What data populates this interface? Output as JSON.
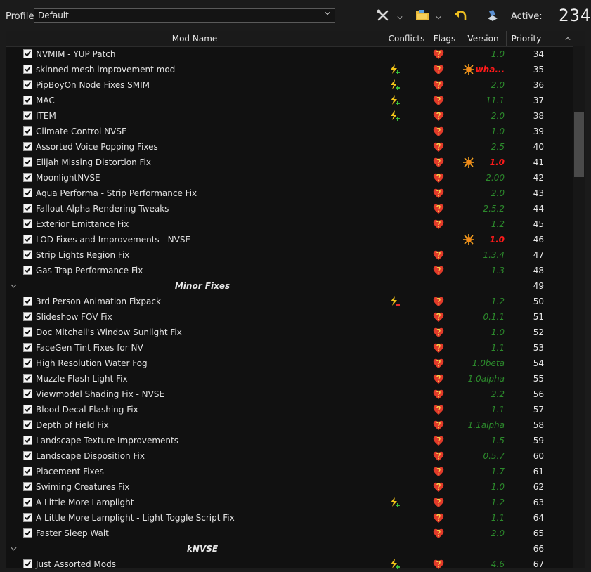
{
  "toolbar": {
    "profile_label": "Profile",
    "profile_value": "Default",
    "active_label": "Active:",
    "active_count": "234",
    "icons": [
      "tools-icon",
      "folder-icon",
      "undo-icon",
      "archive-icon"
    ]
  },
  "columns": [
    "Mod Name",
    "Conflicts",
    "Flags",
    "Version",
    "Priority"
  ],
  "rows": [
    {
      "type": "mod",
      "name": "NVMIM - YUP Patch",
      "conflict": "",
      "flag": true,
      "warn": false,
      "version": "1.0",
      "bad": false,
      "priority": "34"
    },
    {
      "type": "mod",
      "name": "skinned mesh improvement mod",
      "conflict": "overwrite",
      "flag": true,
      "warn": true,
      "version": "wha...",
      "bad": true,
      "priority": "35"
    },
    {
      "type": "mod",
      "name": "PipBoyOn Node Fixes SMIM",
      "conflict": "overwrite",
      "flag": true,
      "warn": false,
      "version": "2.0",
      "bad": false,
      "priority": "36"
    },
    {
      "type": "mod",
      "name": "MAC",
      "conflict": "overwrite",
      "flag": true,
      "warn": false,
      "version": "11.1",
      "bad": false,
      "priority": "37"
    },
    {
      "type": "mod",
      "name": "ITEM",
      "conflict": "overwrite",
      "flag": true,
      "warn": false,
      "version": "2.0",
      "bad": false,
      "priority": "38"
    },
    {
      "type": "mod",
      "name": "Climate Control NVSE",
      "conflict": "",
      "flag": true,
      "warn": false,
      "version": "1.0",
      "bad": false,
      "priority": "39"
    },
    {
      "type": "mod",
      "name": "Assorted Voice Popping Fixes",
      "conflict": "",
      "flag": true,
      "warn": false,
      "version": "2.5",
      "bad": false,
      "priority": "40"
    },
    {
      "type": "mod",
      "name": "Elijah Missing Distortion Fix",
      "conflict": "",
      "flag": true,
      "warn": true,
      "version": "1.0",
      "bad": true,
      "priority": "41"
    },
    {
      "type": "mod",
      "name": "MoonlightNVSE",
      "conflict": "",
      "flag": true,
      "warn": false,
      "version": "2.00",
      "bad": false,
      "priority": "42"
    },
    {
      "type": "mod",
      "name": "Aqua Performa - Strip Performance Fix",
      "conflict": "",
      "flag": true,
      "warn": false,
      "version": "2.0",
      "bad": false,
      "priority": "43"
    },
    {
      "type": "mod",
      "name": "Fallout Alpha Rendering Tweaks",
      "conflict": "",
      "flag": true,
      "warn": false,
      "version": "2.5.2",
      "bad": false,
      "priority": "44"
    },
    {
      "type": "mod",
      "name": "Exterior Emittance Fix",
      "conflict": "",
      "flag": true,
      "warn": false,
      "version": "1.2",
      "bad": false,
      "priority": "45"
    },
    {
      "type": "mod",
      "name": "LOD Fixes and Improvements - NVSE",
      "conflict": "",
      "flag": false,
      "warn": true,
      "version": "1.0",
      "bad": true,
      "priority": "46"
    },
    {
      "type": "mod",
      "name": "Strip Lights Region Fix",
      "conflict": "",
      "flag": true,
      "warn": false,
      "version": "1.3.4",
      "bad": false,
      "priority": "47"
    },
    {
      "type": "mod",
      "name": "Gas Trap Performance Fix",
      "conflict": "",
      "flag": true,
      "warn": false,
      "version": "1.3",
      "bad": false,
      "priority": "48"
    },
    {
      "type": "sep",
      "name": "Minor Fixes",
      "priority": "49"
    },
    {
      "type": "mod",
      "name": "3rd Person Animation Fixpack",
      "conflict": "overwritten",
      "flag": true,
      "warn": false,
      "version": "1.2",
      "bad": false,
      "priority": "50"
    },
    {
      "type": "mod",
      "name": "Slideshow FOV Fix",
      "conflict": "",
      "flag": true,
      "warn": false,
      "version": "0.1.1",
      "bad": false,
      "priority": "51"
    },
    {
      "type": "mod",
      "name": "Doc Mitchell's Window Sunlight Fix",
      "conflict": "",
      "flag": true,
      "warn": false,
      "version": "1.0",
      "bad": false,
      "priority": "52"
    },
    {
      "type": "mod",
      "name": "FaceGen Tint Fixes for NV",
      "conflict": "",
      "flag": true,
      "warn": false,
      "version": "1.1",
      "bad": false,
      "priority": "53"
    },
    {
      "type": "mod",
      "name": "High Resolution Water Fog",
      "conflict": "",
      "flag": true,
      "warn": false,
      "version": "1.0beta",
      "bad": false,
      "priority": "54"
    },
    {
      "type": "mod",
      "name": "Muzzle Flash Light Fix",
      "conflict": "",
      "flag": true,
      "warn": false,
      "version": "1.0alpha",
      "bad": false,
      "priority": "55"
    },
    {
      "type": "mod",
      "name": "Viewmodel Shading Fix - NVSE",
      "conflict": "",
      "flag": true,
      "warn": false,
      "version": "2.2",
      "bad": false,
      "priority": "56"
    },
    {
      "type": "mod",
      "name": "Blood Decal Flashing Fix",
      "conflict": "",
      "flag": true,
      "warn": false,
      "version": "1.1",
      "bad": false,
      "priority": "57"
    },
    {
      "type": "mod",
      "name": "Depth of Field Fix",
      "conflict": "",
      "flag": true,
      "warn": false,
      "version": "1.1alpha",
      "bad": false,
      "priority": "58"
    },
    {
      "type": "mod",
      "name": "Landscape Texture Improvements",
      "conflict": "",
      "flag": true,
      "warn": false,
      "version": "1.5",
      "bad": false,
      "priority": "59"
    },
    {
      "type": "mod",
      "name": "Landscape Disposition Fix",
      "conflict": "",
      "flag": true,
      "warn": false,
      "version": "0.5.7",
      "bad": false,
      "priority": "60"
    },
    {
      "type": "mod",
      "name": "Placement Fixes",
      "conflict": "",
      "flag": true,
      "warn": false,
      "version": "1.7",
      "bad": false,
      "priority": "61"
    },
    {
      "type": "mod",
      "name": "Swiming Creatures Fix",
      "conflict": "",
      "flag": true,
      "warn": false,
      "version": "1.0",
      "bad": false,
      "priority": "62"
    },
    {
      "type": "mod",
      "name": "A Little More Lamplight",
      "conflict": "overwrite",
      "flag": true,
      "warn": false,
      "version": "1.2",
      "bad": false,
      "priority": "63"
    },
    {
      "type": "mod",
      "name": "A Little More Lamplight - Light Toggle Script Fix",
      "conflict": "",
      "flag": true,
      "warn": false,
      "version": "1.1",
      "bad": false,
      "priority": "64"
    },
    {
      "type": "mod",
      "name": "Faster Sleep Wait",
      "conflict": "",
      "flag": true,
      "warn": false,
      "version": "2.0",
      "bad": false,
      "priority": "65"
    },
    {
      "type": "sep",
      "name": "kNVSE",
      "priority": "66"
    },
    {
      "type": "mod",
      "name": "Just Assorted Mods",
      "conflict": "overwrite",
      "flag": true,
      "warn": false,
      "version": "4.6",
      "bad": false,
      "priority": "67"
    }
  ],
  "colors": {
    "version_ok": "#2c8a2c",
    "version_bad": "#ff1a1a",
    "background": "#111111"
  }
}
